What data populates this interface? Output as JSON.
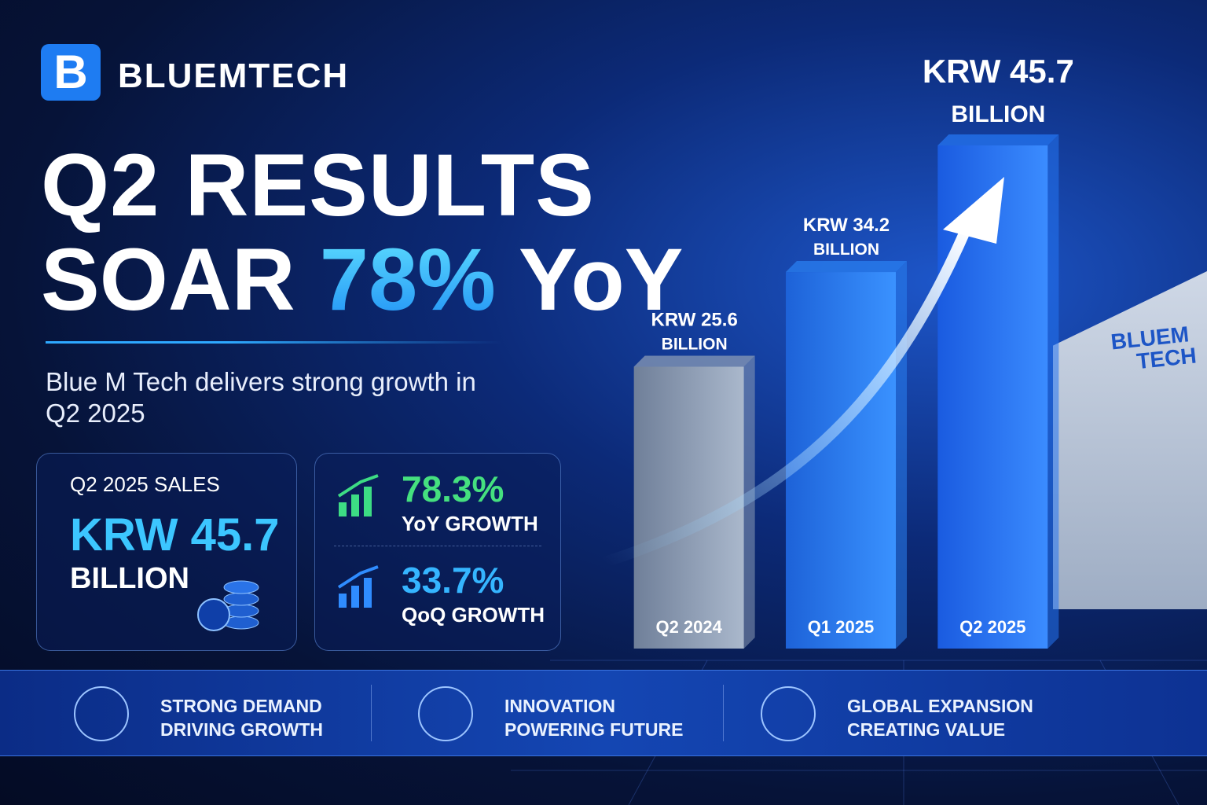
{
  "header": {
    "brand": "BLUEMTECH"
  },
  "headline": {
    "line1": "Q2 RESULTS",
    "line2_start": "SOAR",
    "line2_highlight": "78%",
    "line2_end": "YoY"
  },
  "subtitle": "Blue M Tech delivers strong growth in Q2 2025",
  "sales_card": {
    "label": "Q2 2025 SALES",
    "value": "KRW 45.7",
    "unit": "BILLION"
  },
  "growth_card": {
    "items": [
      {
        "value": "78.3%",
        "label": "YoY GROWTH"
      },
      {
        "value": "33.7%",
        "label": "QoQ GROWTH"
      }
    ]
  },
  "chart_data": {
    "type": "bar",
    "categories": [
      "Q2 2024",
      "Q1 2025",
      "Q2 2025"
    ],
    "values": [
      25.6,
      34.2,
      45.7
    ],
    "value_labels": [
      "KRW 25.6",
      "KRW 34.2",
      "KRW 45.7"
    ],
    "value_unit": "BILLION",
    "colors": [
      "#8a9bb5",
      "#2a7ff0",
      "#2475f2"
    ]
  },
  "features": [
    {
      "line1": "STRONG DEMAND",
      "line2": "DRIVING GROWTH"
    },
    {
      "line1": "INNOVATION",
      "line2": "POWERING FUTURE"
    },
    {
      "line1": "GLOBAL EXPANSION",
      "line2": "CREATING VALUE"
    }
  ],
  "building_sign": {
    "line1": "BLUEM",
    "line2": "TECH"
  }
}
